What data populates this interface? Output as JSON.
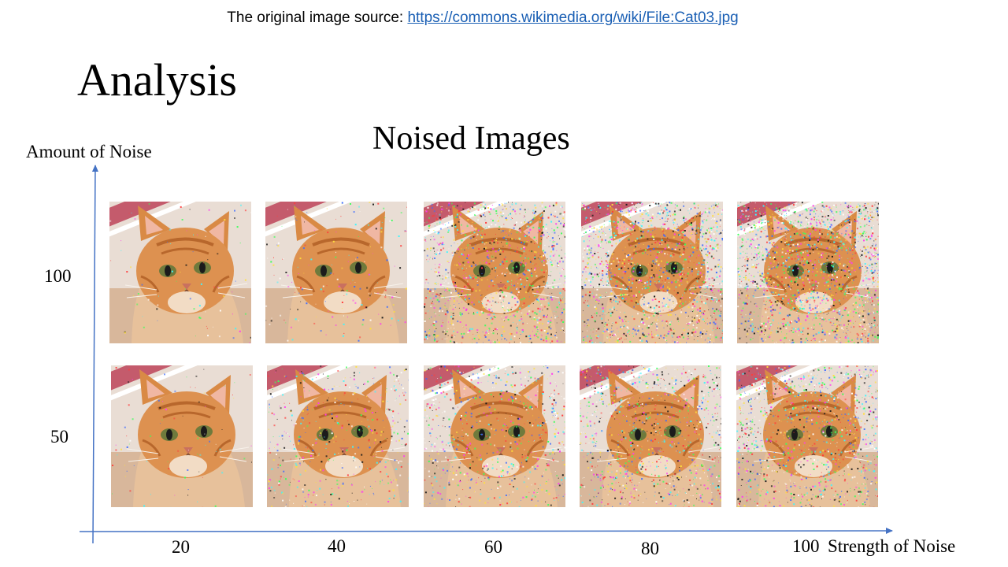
{
  "source": {
    "prefix": "The original image source: ",
    "link_text": "https://commons.wikimedia.org/wiki/File:Cat03.jpg"
  },
  "slide_title": "Analysis",
  "figure_title": "Noised Images",
  "y_axis_title": "Amount of Noise",
  "x_axis_title": "Strength of Noise",
  "x_ticks": [
    "20",
    "40",
    "60",
    "80",
    "100"
  ],
  "y_ticks": [
    "100",
    "50"
  ],
  "axis_color": "#4472c4",
  "grid": {
    "rows": [
      {
        "amount": "100",
        "cells": [
          {
            "strength": "20",
            "image": "noised-cat-photo"
          },
          {
            "strength": "40",
            "image": "noised-cat-photo"
          },
          {
            "strength": "60",
            "image": "noised-cat-photo"
          },
          {
            "strength": "80",
            "image": "noised-cat-photo"
          },
          {
            "strength": "100",
            "image": "noised-cat-photo"
          }
        ]
      },
      {
        "amount": "50",
        "cells": [
          {
            "strength": "20",
            "image": "noised-cat-photo"
          },
          {
            "strength": "40",
            "image": "noised-cat-photo"
          },
          {
            "strength": "60",
            "image": "noised-cat-photo"
          },
          {
            "strength": "80",
            "image": "noised-cat-photo"
          },
          {
            "strength": "100",
            "image": "noised-cat-photo"
          }
        ]
      }
    ]
  }
}
